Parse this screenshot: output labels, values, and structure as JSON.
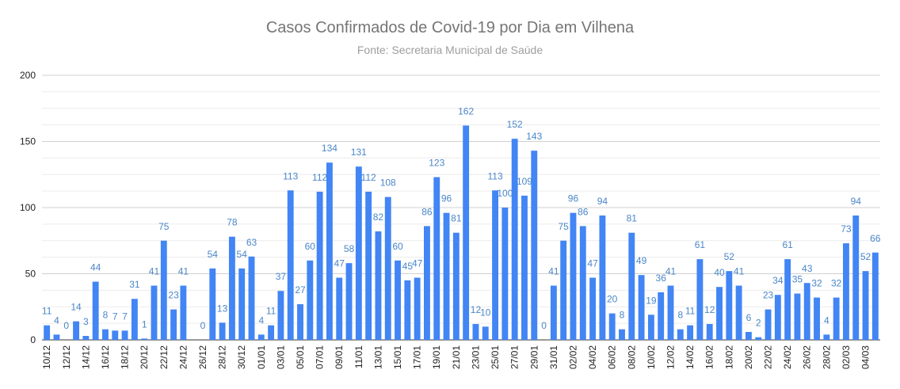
{
  "chart_data": {
    "type": "bar",
    "title": "Casos Confirmados de Covid-19 por Dia em Vilhena",
    "subtitle": "Fonte: Secretaria Municipal de Saúde",
    "xlabel": "",
    "ylabel": "",
    "ylim": [
      0,
      200
    ],
    "yticks": [
      0,
      50,
      100,
      150,
      200
    ],
    "grid": true,
    "bar_color": "#4285f4",
    "label_color": "#4a86c8",
    "values": [
      11,
      4,
      0,
      14,
      3,
      44,
      8,
      7,
      7,
      31,
      1,
      41,
      75,
      23,
      41,
      0,
      0,
      54,
      13,
      78,
      54,
      63,
      4,
      11,
      37,
      113,
      27,
      60,
      112,
      134,
      47,
      58,
      131,
      112,
      82,
      108,
      60,
      45,
      47,
      86,
      123,
      96,
      81,
      162,
      12,
      10,
      113,
      100,
      152,
      109,
      143,
      0,
      41,
      75,
      96,
      86,
      47,
      94,
      20,
      8,
      81,
      49,
      19,
      36,
      41,
      8,
      11,
      61,
      12,
      40,
      52,
      41,
      6,
      2,
      23,
      34,
      61,
      35,
      43,
      32,
      4,
      32,
      73,
      94,
      52,
      66
    ],
    "x_tick_labels": [
      "10/12",
      "12/12",
      "14/12",
      "16/12",
      "18/12",
      "20/12",
      "22/12",
      "24/12",
      "26/12",
      "28/12",
      "30/12",
      "01/01",
      "03/01",
      "05/01",
      "07/01",
      "09/01",
      "11/01",
      "13/01",
      "15/01",
      "17/01",
      "19/01",
      "21/01",
      "23/01",
      "25/01",
      "27/01",
      "29/01",
      "31/01",
      "02/02",
      "04/02",
      "06/02",
      "08/02",
      "10/02",
      "12/02",
      "14/02",
      "16/02",
      "18/02",
      "20/02",
      "22/02",
      "24/02",
      "26/02",
      "28/02",
      "02/03",
      "04/03"
    ],
    "hidden_labels": [
      15
    ]
  }
}
